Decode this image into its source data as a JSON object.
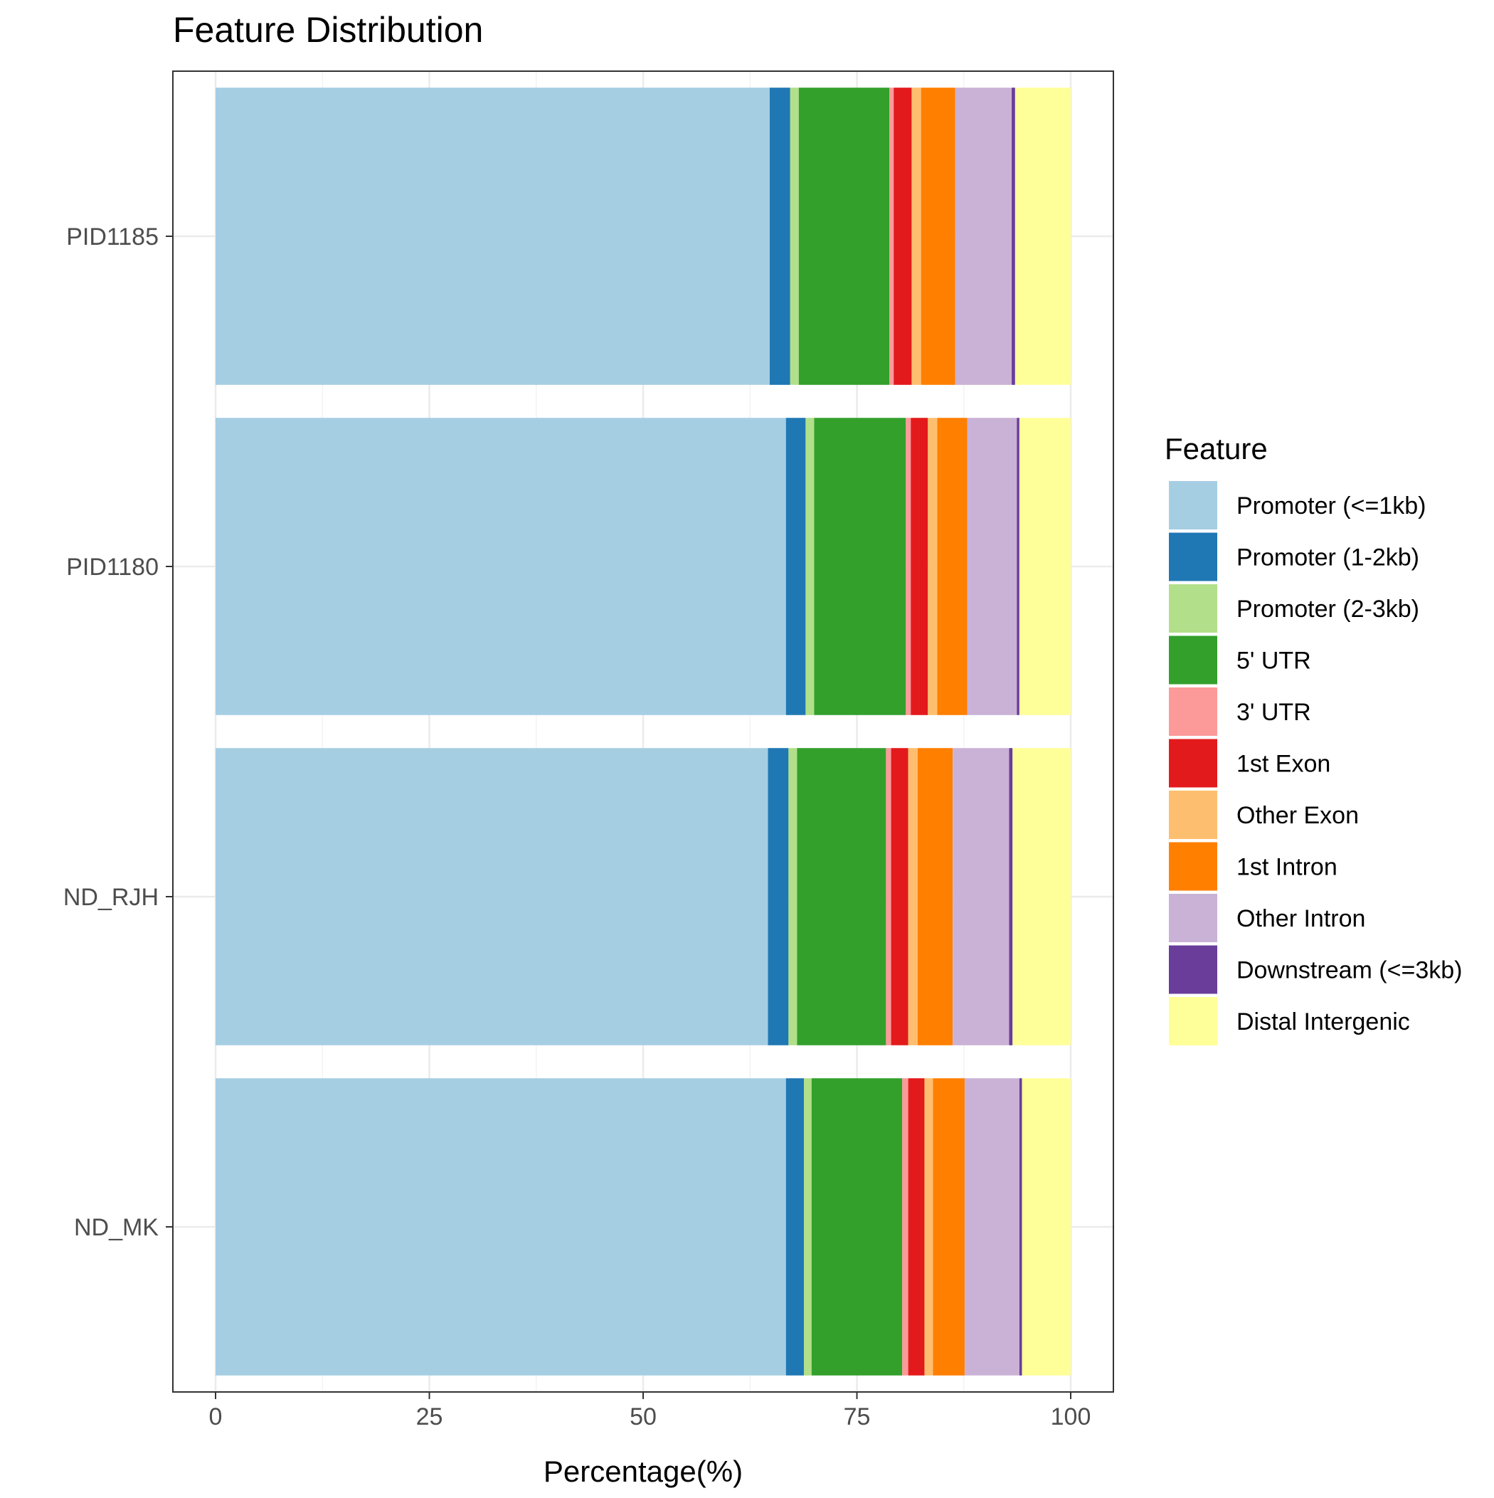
{
  "chart_data": {
    "type": "bar",
    "orientation": "horizontal",
    "stacked": true,
    "title": "Feature Distribution",
    "xlabel": "Percentage(%)",
    "ylabel": "",
    "xlim": [
      0,
      100
    ],
    "xticks": [
      0,
      25,
      50,
      75,
      100
    ],
    "grid": true,
    "legend_title": "Feature",
    "legend_position": "right",
    "categories": [
      "PID1185",
      "PID1180",
      "ND_RJH",
      "ND_MK"
    ],
    "series": [
      {
        "name": "Promoter (<=1kb)",
        "color": "#A6CEE3",
        "values": [
          64.8,
          66.7,
          64.6,
          66.7
        ]
      },
      {
        "name": "Promoter (1-2kb)",
        "color": "#1F78B4",
        "values": [
          2.4,
          2.3,
          2.4,
          2.1
        ]
      },
      {
        "name": "Promoter (2-3kb)",
        "color": "#B2DF8A",
        "values": [
          1.0,
          1.0,
          1.0,
          0.9
        ]
      },
      {
        "name": "5' UTR",
        "color": "#33A02C",
        "values": [
          10.6,
          10.7,
          10.4,
          10.6
        ]
      },
      {
        "name": "3' UTR",
        "color": "#FB9A99",
        "values": [
          0.5,
          0.6,
          0.6,
          0.7
        ]
      },
      {
        "name": "1st Exon",
        "color": "#E31A1C",
        "values": [
          2.1,
          2.0,
          2.0,
          1.9
        ]
      },
      {
        "name": "Other Exon",
        "color": "#FDBF6F",
        "values": [
          1.1,
          1.1,
          1.1,
          1.0
        ]
      },
      {
        "name": "1st Intron",
        "color": "#FF7F00",
        "values": [
          4.0,
          3.5,
          4.1,
          3.7
        ]
      },
      {
        "name": "Other Intron",
        "color": "#CAB2D6",
        "values": [
          6.6,
          5.8,
          6.6,
          6.4
        ]
      },
      {
        "name": "Downstream (<=3kb)",
        "color": "#6A3D9A",
        "values": [
          0.4,
          0.3,
          0.4,
          0.3
        ]
      },
      {
        "name": "Distal Intergenic",
        "color": "#FFFF99",
        "values": [
          6.5,
          6.0,
          6.8,
          5.7
        ]
      }
    ]
  }
}
